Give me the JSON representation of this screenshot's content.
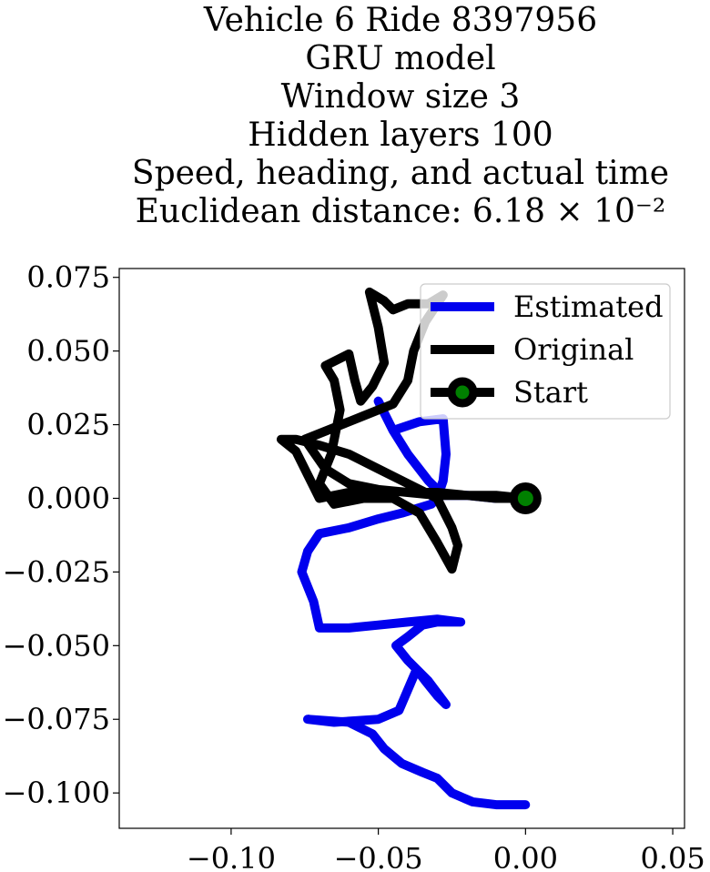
{
  "title_lines": [
    "Vehicle 6 Ride 8397956",
    "GRU model",
    "Window size 3",
    "Hidden layers 100",
    "Speed, heading, and actual time",
    "Euclidean distance: 6.18 × 10⁻²"
  ],
  "chart_data": {
    "type": "line",
    "title": "Vehicle 6 Ride 8397956 / GRU model / Window size 3 / Hidden layers 100 / Speed, heading, and actual time / Euclidean distance: 6.18 × 10⁻²",
    "xlabel": "",
    "ylabel": "",
    "xlim": [
      -0.138,
      0.054
    ],
    "ylim": [
      -0.112,
      0.078
    ],
    "grid": false,
    "legend": "top-right",
    "x_ticks": [
      -0.1,
      -0.05,
      0.0,
      0.05
    ],
    "x_tick_labels": [
      "−0.10",
      "−0.05",
      "0.00",
      "0.05"
    ],
    "y_ticks": [
      0.075,
      0.05,
      0.025,
      0.0,
      -0.025,
      -0.05,
      -0.075,
      -0.1
    ],
    "y_tick_labels": [
      "0.075",
      "0.050",
      "0.025",
      "0.000",
      "−0.025",
      "−0.050",
      "−0.075",
      "−0.100"
    ],
    "series": [
      {
        "name": "Estimated",
        "color": "#0000ee",
        "points": [
          [
            0.0,
            -0.104
          ],
          [
            -0.01,
            -0.104
          ],
          [
            -0.018,
            -0.103
          ],
          [
            -0.025,
            -0.1
          ],
          [
            -0.03,
            -0.095
          ],
          [
            -0.035,
            -0.093
          ],
          [
            -0.042,
            -0.09
          ],
          [
            -0.048,
            -0.085
          ],
          [
            -0.052,
            -0.08
          ],
          [
            -0.06,
            -0.076
          ],
          [
            -0.074,
            -0.075
          ],
          [
            -0.065,
            -0.076
          ],
          [
            -0.05,
            -0.075
          ],
          [
            -0.043,
            -0.072
          ],
          [
            -0.04,
            -0.065
          ],
          [
            -0.037,
            -0.058
          ],
          [
            -0.034,
            -0.062
          ],
          [
            -0.03,
            -0.067
          ],
          [
            -0.027,
            -0.07
          ],
          [
            -0.033,
            -0.062
          ],
          [
            -0.04,
            -0.055
          ],
          [
            -0.044,
            -0.05
          ],
          [
            -0.04,
            -0.047
          ],
          [
            -0.035,
            -0.043
          ],
          [
            -0.03,
            -0.042
          ],
          [
            -0.022,
            -0.042
          ],
          [
            -0.03,
            -0.041
          ],
          [
            -0.04,
            -0.042
          ],
          [
            -0.05,
            -0.043
          ],
          [
            -0.06,
            -0.044
          ],
          [
            -0.07,
            -0.044
          ],
          [
            -0.072,
            -0.035
          ],
          [
            -0.076,
            -0.025
          ],
          [
            -0.074,
            -0.018
          ],
          [
            -0.07,
            -0.012
          ],
          [
            -0.06,
            -0.01
          ],
          [
            -0.05,
            -0.007
          ],
          [
            -0.042,
            -0.005
          ],
          [
            -0.032,
            -0.002
          ],
          [
            -0.03,
            0.0
          ],
          [
            -0.028,
            0.006
          ],
          [
            -0.027,
            0.015
          ],
          [
            -0.028,
            0.027
          ],
          [
            -0.036,
            0.026
          ],
          [
            -0.045,
            0.023
          ],
          [
            -0.05,
            0.033
          ],
          [
            -0.045,
            0.023
          ],
          [
            -0.04,
            0.015
          ],
          [
            -0.033,
            0.006
          ],
          [
            -0.028,
            0.001
          ],
          [
            -0.02,
            0.001
          ],
          [
            -0.01,
            0.0
          ],
          [
            0.0,
            0.0
          ]
        ]
      },
      {
        "name": "Original",
        "color": "#000000",
        "points": [
          [
            0.0,
            0.0
          ],
          [
            -0.01,
            0.0
          ],
          [
            -0.02,
            0.001
          ],
          [
            -0.03,
            0.001
          ],
          [
            -0.04,
            0.002
          ],
          [
            -0.05,
            0.003
          ],
          [
            -0.06,
            0.002
          ],
          [
            -0.07,
            0.0
          ],
          [
            -0.074,
            0.008
          ],
          [
            -0.078,
            0.016
          ],
          [
            -0.083,
            0.02
          ],
          [
            -0.078,
            0.02
          ],
          [
            -0.07,
            0.018
          ],
          [
            -0.06,
            0.015
          ],
          [
            -0.05,
            0.01
          ],
          [
            -0.04,
            0.005
          ],
          [
            -0.03,
            0.0
          ],
          [
            -0.025,
            -0.01
          ],
          [
            -0.023,
            -0.016
          ],
          [
            -0.025,
            -0.024
          ],
          [
            -0.03,
            -0.015
          ],
          [
            -0.036,
            -0.005
          ],
          [
            -0.045,
            0.0
          ],
          [
            -0.055,
            0.0
          ],
          [
            -0.065,
            -0.002
          ],
          [
            -0.07,
            0.005
          ],
          [
            -0.066,
            0.015
          ],
          [
            -0.063,
            0.03
          ],
          [
            -0.065,
            0.04
          ],
          [
            -0.068,
            0.045
          ],
          [
            -0.06,
            0.049
          ],
          [
            -0.058,
            0.04
          ],
          [
            -0.056,
            0.033
          ],
          [
            -0.052,
            0.038
          ],
          [
            -0.048,
            0.046
          ],
          [
            -0.05,
            0.058
          ],
          [
            -0.053,
            0.07
          ],
          [
            -0.048,
            0.067
          ],
          [
            -0.045,
            0.064
          ],
          [
            -0.04,
            0.066
          ],
          [
            -0.033,
            0.066
          ],
          [
            -0.028,
            0.069
          ],
          [
            -0.034,
            0.06
          ],
          [
            -0.038,
            0.05
          ],
          [
            -0.04,
            0.04
          ],
          [
            -0.045,
            0.032
          ],
          [
            -0.055,
            0.028
          ],
          [
            -0.065,
            0.024
          ],
          [
            -0.075,
            0.02
          ],
          [
            -0.068,
            0.01
          ],
          [
            -0.06,
            0.005
          ],
          [
            -0.05,
            0.003
          ],
          [
            -0.04,
            0.002
          ],
          [
            -0.03,
            0.002
          ],
          [
            -0.02,
            0.001
          ],
          [
            -0.01,
            0.001
          ],
          [
            0.0,
            0.0
          ]
        ]
      },
      {
        "name": "Start",
        "color": "#000000",
        "marker_color": "#008000",
        "points": [
          [
            0.0,
            0.0
          ]
        ]
      }
    ],
    "legend_entries": [
      "Estimated",
      "Original",
      "Start"
    ]
  }
}
